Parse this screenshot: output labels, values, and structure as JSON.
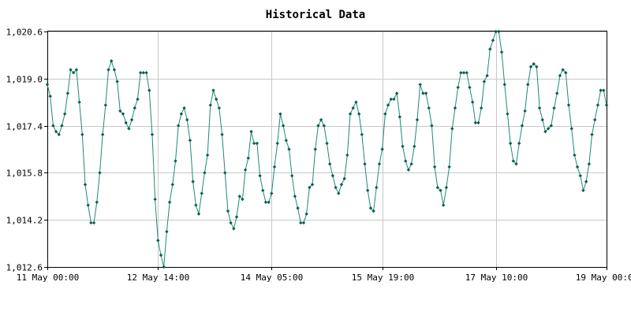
{
  "chart_data": {
    "type": "line",
    "title": "Historical Data",
    "xlabel": "",
    "ylabel": "",
    "grid": true,
    "legend": "none",
    "colors": {
      "series": "#1e8a7a",
      "marker": "#0c5c52",
      "grid": "#c8c8c8"
    },
    "xlim": [
      "2016-05-11 00:00",
      "2016-05-19 00:00"
    ],
    "ylim": [
      1012.6,
      1020.6
    ],
    "x_ticks": [
      {
        "x": "2016-05-11 00:00",
        "label": "11 May 00:00"
      },
      {
        "x": "2016-05-12 14:00",
        "label": "12 May 14:00"
      },
      {
        "x": "2016-05-14 05:00",
        "label": "14 May 05:00"
      },
      {
        "x": "2016-05-15 19:00",
        "label": "15 May 19:00"
      },
      {
        "x": "2016-05-17 10:00",
        "label": "17 May 10:00"
      },
      {
        "x": "2016-05-19 00:00",
        "label": "19 May 00:00"
      }
    ],
    "y_ticks": [
      "1,012.6",
      "1,014.2",
      "1,015.8",
      "1,017.4",
      "1,019.0",
      "1,020.6"
    ],
    "series": [
      {
        "x_start": "2016-05-11 00:00",
        "x_step_hours": 1,
        "values": [
          1018.8,
          1018.4,
          1017.4,
          1017.2,
          1017.1,
          1017.4,
          1017.8,
          1018.5,
          1019.3,
          1019.2,
          1019.3,
          1018.2,
          1017.1,
          1015.4,
          1014.7,
          1014.1,
          1014.1,
          1014.8,
          1015.8,
          1017.1,
          1018.1,
          1019.3,
          1019.6,
          1019.3,
          1018.9,
          1017.9,
          1017.8,
          1017.5,
          1017.3,
          1017.6,
          1018.0,
          1018.3,
          1019.2,
          1019.2,
          1019.2,
          1018.6,
          1017.1,
          1014.9,
          1013.5,
          1013.0,
          1012.6,
          1013.8,
          1014.8,
          1015.4,
          1016.2,
          1017.4,
          1017.8,
          1018.0,
          1017.6,
          1016.9,
          1015.5,
          1014.7,
          1014.4,
          1015.1,
          1015.8,
          1016.4,
          1018.1,
          1018.6,
          1018.3,
          1018.0,
          1017.1,
          1015.8,
          1014.5,
          1014.1,
          1013.9,
          1014.3,
          1015.0,
          1014.9,
          1015.9,
          1016.3,
          1017.2,
          1016.8,
          1016.8,
          1015.7,
          1015.2,
          1014.8,
          1014.8,
          1015.1,
          1016.0,
          1016.8,
          1017.8,
          1017.4,
          1016.9,
          1016.6,
          1015.7,
          1015.0,
          1014.6,
          1014.1,
          1014.1,
          1014.4,
          1015.3,
          1015.4,
          1016.6,
          1017.4,
          1017.6,
          1017.4,
          1016.8,
          1016.1,
          1015.7,
          1015.3,
          1015.1,
          1015.4,
          1015.6,
          1016.4,
          1017.8,
          1018.0,
          1018.2,
          1017.8,
          1017.1,
          1016.1,
          1015.2,
          1014.6,
          1014.5,
          1015.3,
          1016.1,
          1016.6,
          1017.8,
          1018.1,
          1018.3,
          1018.3,
          1018.5,
          1017.7,
          1016.7,
          1016.2,
          1015.9,
          1016.1,
          1016.7,
          1017.6,
          1018.8,
          1018.5,
          1018.5,
          1018.0,
          1017.4,
          1016.0,
          1015.3,
          1015.2,
          1014.7,
          1015.3,
          1016.0,
          1017.3,
          1018.0,
          1018.7,
          1019.2,
          1019.2,
          1019.2,
          1018.7,
          1018.2,
          1017.5,
          1017.5,
          1018.0,
          1018.9,
          1019.1,
          1020.0,
          1020.3,
          1020.6,
          1020.6,
          1019.9,
          1018.8,
          1017.8,
          1016.8,
          1016.2,
          1016.1,
          1016.8,
          1017.4,
          1017.9,
          1018.8,
          1019.4,
          1019.5,
          1019.4,
          1018.0,
          1017.6,
          1017.2,
          1017.3,
          1017.4,
          1018.0,
          1018.5,
          1019.1,
          1019.3,
          1019.2,
          1018.1,
          1017.3,
          1016.4,
          1016.0,
          1015.7,
          1015.2,
          1015.5,
          1016.1,
          1017.1,
          1017.6,
          1018.1,
          1018.6,
          1018.6,
          1018.1
        ]
      }
    ]
  }
}
